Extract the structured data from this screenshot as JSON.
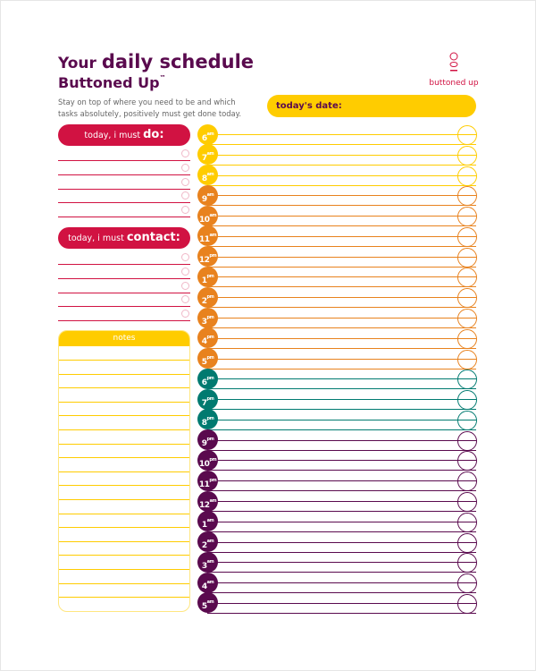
{
  "header": {
    "title_prefix": "Your",
    "title_main": "daily schedule",
    "subtitle": "Buttoned Up",
    "trademark": "™",
    "description_line1": "Stay on top of where you need to be and which",
    "description_line2": "tasks absolutely, positively must get done today.",
    "logo_text": "buttoned up",
    "date_label": "today's date:"
  },
  "todo": {
    "label_prefix": "today, i must",
    "label_strong": "do:",
    "line_count": 5
  },
  "contact": {
    "label_prefix": "today, i must",
    "label_strong": "contact:",
    "line_count": 5
  },
  "notes": {
    "label": "notes"
  },
  "colors": {
    "yellow": "#ffcc00",
    "orange": "#e8821e",
    "teal": "#007a70",
    "purple": "#5a0a4e",
    "crimson": "#d11242"
  },
  "hours": [
    {
      "h": "6",
      "m": "am",
      "color": "yellow"
    },
    {
      "h": "7",
      "m": "am",
      "color": "yellow"
    },
    {
      "h": "8",
      "m": "am",
      "color": "yellow"
    },
    {
      "h": "9",
      "m": "am",
      "color": "orange"
    },
    {
      "h": "10",
      "m": "am",
      "color": "orange"
    },
    {
      "h": "11",
      "m": "am",
      "color": "orange"
    },
    {
      "h": "12",
      "m": "pm",
      "color": "orange"
    },
    {
      "h": "1",
      "m": "pm",
      "color": "orange"
    },
    {
      "h": "2",
      "m": "pm",
      "color": "orange"
    },
    {
      "h": "3",
      "m": "pm",
      "color": "orange"
    },
    {
      "h": "4",
      "m": "pm",
      "color": "orange"
    },
    {
      "h": "5",
      "m": "pm",
      "color": "orange"
    },
    {
      "h": "6",
      "m": "pm",
      "color": "teal"
    },
    {
      "h": "7",
      "m": "pm",
      "color": "teal"
    },
    {
      "h": "8",
      "m": "pm",
      "color": "teal"
    },
    {
      "h": "9",
      "m": "pm",
      "color": "purple"
    },
    {
      "h": "10",
      "m": "pm",
      "color": "purple"
    },
    {
      "h": "11",
      "m": "pm",
      "color": "purple"
    },
    {
      "h": "12",
      "m": "am",
      "color": "purple"
    },
    {
      "h": "1",
      "m": "am",
      "color": "purple"
    },
    {
      "h": "2",
      "m": "am",
      "color": "purple"
    },
    {
      "h": "3",
      "m": "am",
      "color": "purple"
    },
    {
      "h": "4",
      "m": "am",
      "color": "purple"
    },
    {
      "h": "5",
      "m": "am",
      "color": "purple"
    }
  ]
}
